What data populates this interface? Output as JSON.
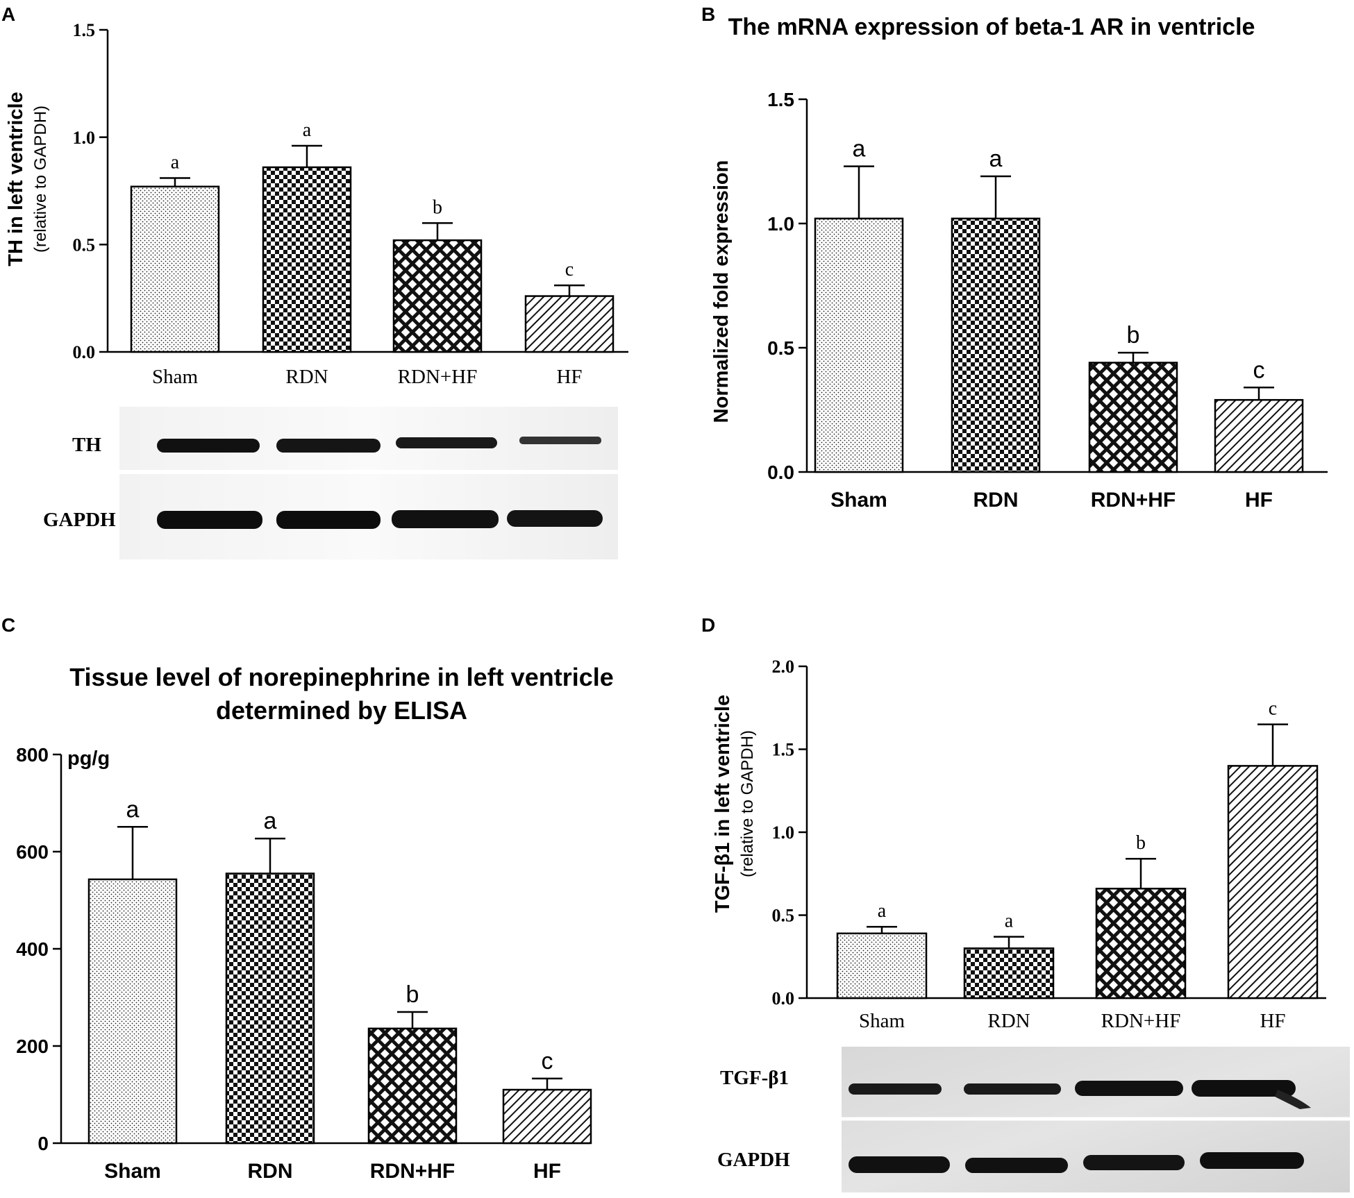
{
  "figure": {
    "panels": [
      "A",
      "B",
      "C",
      "D"
    ]
  },
  "chart_data": [
    {
      "panel": "A",
      "type": "bar",
      "title": "",
      "ylabel": "TH in left ventricle",
      "ylabel2": "(relative to GAPDH)",
      "xlabel": "",
      "ylim": [
        0,
        1.5
      ],
      "yticks": [
        "0.0",
        "0.5",
        "1.0",
        "1.5"
      ],
      "categories": [
        "Sham",
        "RDN",
        "RDN+HF",
        "HF"
      ],
      "values": [
        0.77,
        0.86,
        0.52,
        0.26
      ],
      "errors": [
        0.04,
        0.1,
        0.08,
        0.05
      ],
      "letters": [
        "a",
        "a",
        "b",
        "c"
      ],
      "patterns": [
        "dots",
        "checker",
        "crosshatch",
        "diag"
      ],
      "blot": {
        "rows": [
          "TH",
          "GAPDH"
        ]
      }
    },
    {
      "panel": "B",
      "type": "bar",
      "title": "The mRNA expression of beta-1 AR in ventricle",
      "ylabel": "Normalized fold expression",
      "xlabel": "",
      "ylim": [
        0,
        1.5
      ],
      "yticks": [
        "0.0",
        "0.5",
        "1.0",
        "1.5"
      ],
      "categories": [
        "Sham",
        "RDN",
        "RDN+HF",
        "HF"
      ],
      "values": [
        1.02,
        1.02,
        0.44,
        0.29
      ],
      "errors": [
        0.21,
        0.17,
        0.04,
        0.05
      ],
      "letters": [
        "a",
        "a",
        "b",
        "c"
      ],
      "patterns": [
        "dots",
        "checker",
        "crosshatch",
        "diag"
      ]
    },
    {
      "panel": "C",
      "type": "bar",
      "title": "Tissue level of norepinephrine in left ventricle",
      "title2": "determined by ELISA",
      "ylabel": "",
      "unit": "pg/g",
      "xlabel": "",
      "ylim": [
        0,
        800
      ],
      "yticks": [
        "0",
        "200",
        "400",
        "600",
        "800"
      ],
      "categories": [
        "Sham",
        "RDN",
        "RDN+HF",
        "HF"
      ],
      "values": [
        543,
        555,
        236,
        110
      ],
      "errors": [
        108,
        72,
        34,
        23
      ],
      "letters": [
        "a",
        "a",
        "b",
        "c"
      ],
      "patterns": [
        "dots",
        "checker",
        "crosshatch",
        "diag"
      ]
    },
    {
      "panel": "D",
      "type": "bar",
      "title": "",
      "ylabel": "TGF-β1 in left ventricle",
      "ylabel2": "(relative to GAPDH)",
      "xlabel": "",
      "ylim": [
        0,
        2.0
      ],
      "yticks": [
        "0.0",
        "0.5",
        "1.0",
        "1.5",
        "2.0"
      ],
      "categories": [
        "Sham",
        "RDN",
        "RDN+HF",
        "HF"
      ],
      "values": [
        0.39,
        0.3,
        0.66,
        1.4
      ],
      "errors": [
        0.04,
        0.07,
        0.18,
        0.25
      ],
      "letters": [
        "a",
        "a",
        "b",
        "c"
      ],
      "patterns": [
        "dots",
        "checker",
        "crosshatch",
        "diag"
      ],
      "blot": {
        "rows": [
          "TGF-β1",
          "GAPDH"
        ]
      }
    }
  ],
  "colors": {
    "ink": "#000000",
    "paper": "#ffffff"
  }
}
